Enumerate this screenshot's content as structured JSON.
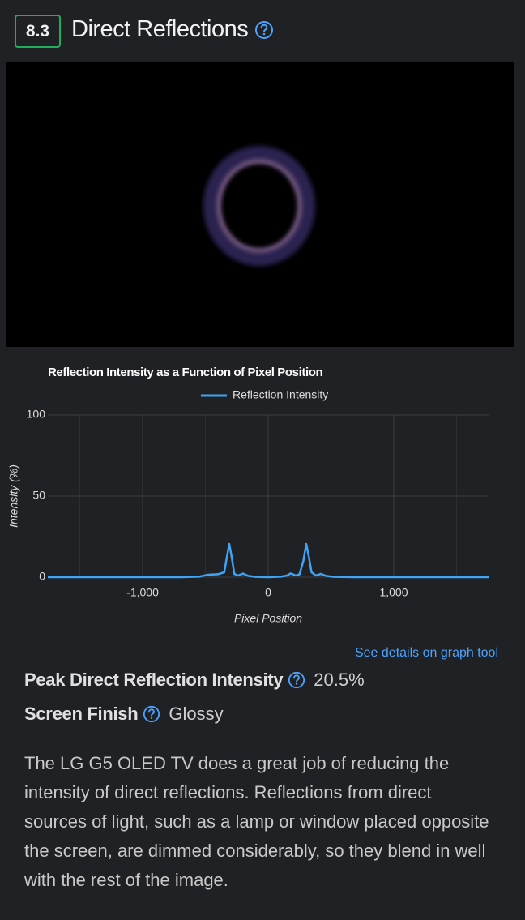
{
  "header": {
    "score": "8.3",
    "title": "Direct Reflections"
  },
  "chart_data": {
    "type": "line",
    "title": "Reflection Intensity as a Function of Pixel Position",
    "x_label": "Pixel Position",
    "y_label": "Intensity (%)",
    "x": [
      -1755,
      -1200,
      -700,
      -550,
      -480,
      -400,
      -350,
      -330,
      -310,
      -290,
      -270,
      -240,
      -200,
      -160,
      -100,
      0,
      100,
      150,
      180,
      220,
      250,
      280,
      303,
      325,
      345,
      380,
      420,
      460,
      520,
      700,
      1200,
      1755
    ],
    "series": [
      {
        "name": "Reflection Intensity",
        "color": "#3fa4f5",
        "values": [
          0,
          0,
          0,
          0.3,
          1.5,
          1.8,
          3,
          12,
          20.5,
          12,
          2,
          1,
          2.2,
          0.8,
          0.2,
          0,
          0.3,
          1,
          2.3,
          1,
          1.8,
          10,
          20.5,
          12,
          3,
          1,
          2,
          0.8,
          0.2,
          0,
          0,
          0
        ]
      }
    ],
    "xlim": [
      -1755,
      1755
    ],
    "ylim": [
      0,
      100
    ],
    "xticks": [
      {
        "value": -1000,
        "label": "-1,000"
      },
      0,
      {
        "value": 1000,
        "label": "1,000"
      }
    ],
    "x_minor_grid": [
      -1500,
      -500,
      500,
      1500
    ],
    "yticks": [
      0,
      50,
      100
    ],
    "grid": true,
    "legend": "top"
  },
  "link": "See details on graph tool",
  "details": [
    {
      "label": "Peak Direct Reflection Intensity",
      "value": "20.5%"
    },
    {
      "label": "Screen Finish",
      "value": "Glossy"
    }
  ],
  "paragraph": "The LG G5 OLED TV does a great job of reducing the intensity of direct reflections. Reflections from direct sources of light, such as a lamp or window placed opposite the screen, are dimmed considerably, so they blend in well with the rest of the image."
}
